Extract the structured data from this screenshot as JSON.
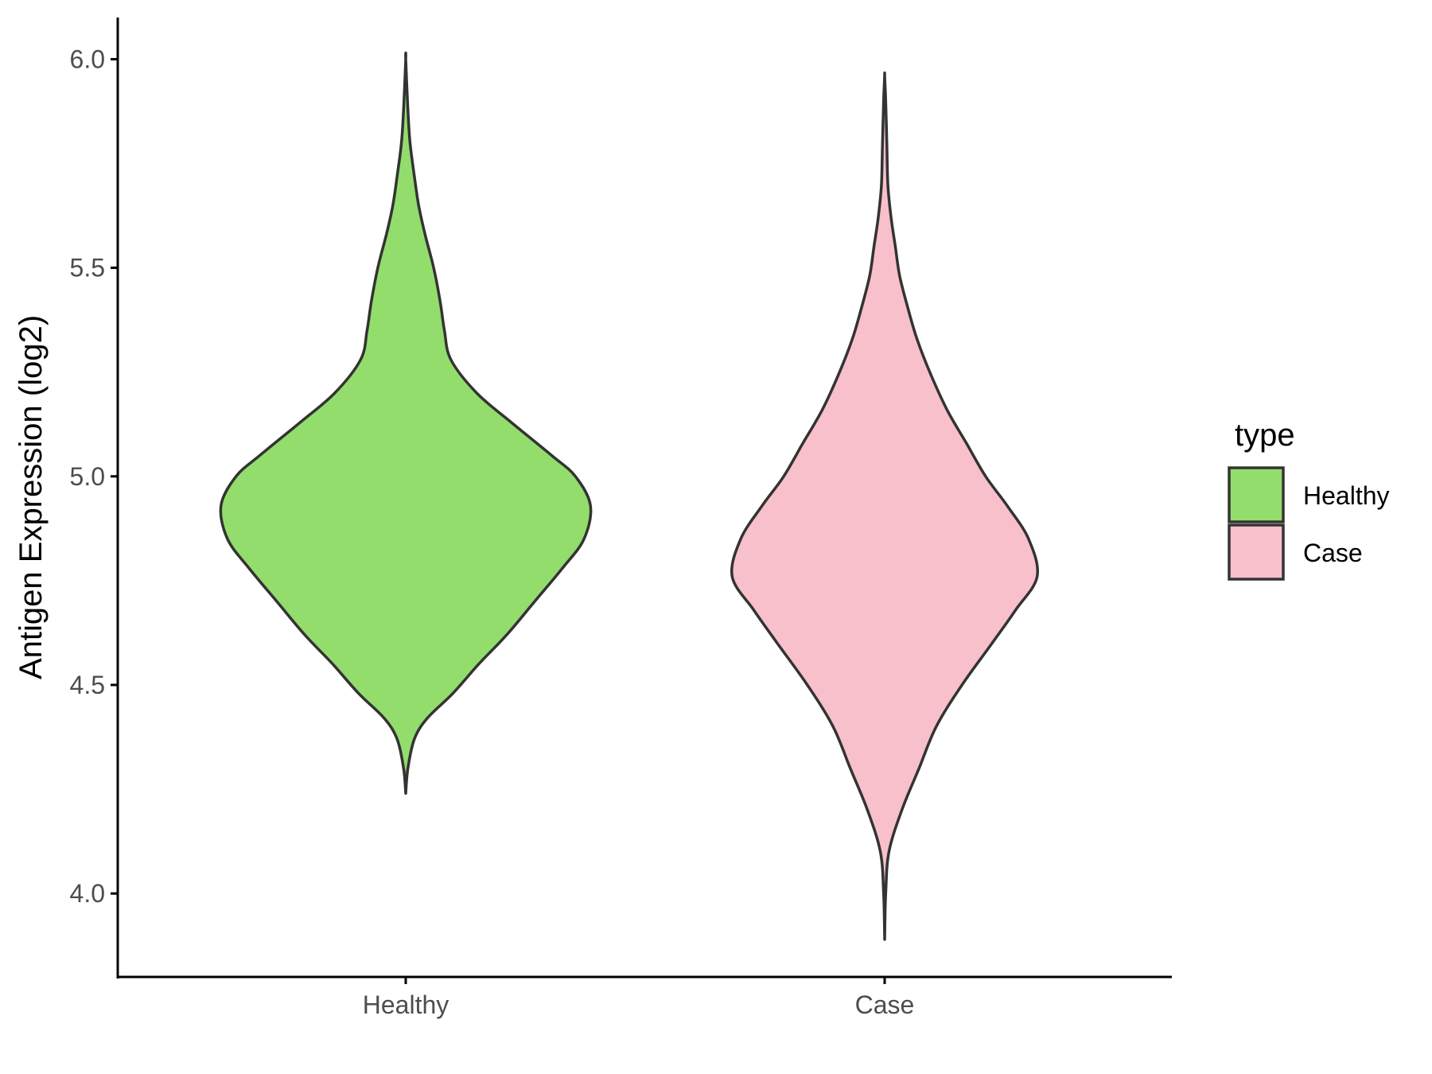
{
  "chart_data": {
    "type": "violin",
    "title": "",
    "xlabel": "",
    "ylabel": "Antigen Expression (log2)",
    "ylim": [
      3.8,
      6.1
    ],
    "yticks": [
      "4.0",
      "4.5",
      "5.0",
      "5.5",
      "6.0"
    ],
    "ytick_values": [
      4.0,
      4.5,
      5.0,
      5.5,
      6.0
    ],
    "categories": [
      "Healthy",
      "Case"
    ],
    "grid": false,
    "legend": {
      "title": "type",
      "placement": "right",
      "entries": [
        "Healthy",
        "Case"
      ]
    },
    "series": [
      {
        "name": "Healthy",
        "color": "#93DD6C",
        "min": 4.24,
        "max": 6.0,
        "density_profile": [
          [
            4.24,
            0.0
          ],
          [
            4.3,
            0.01
          ],
          [
            4.37,
            0.04
          ],
          [
            4.42,
            0.1
          ],
          [
            4.48,
            0.22
          ],
          [
            4.55,
            0.34
          ],
          [
            4.62,
            0.47
          ],
          [
            4.7,
            0.6
          ],
          [
            4.78,
            0.73
          ],
          [
            4.85,
            0.83
          ],
          [
            4.93,
            0.86
          ],
          [
            5.0,
            0.79
          ],
          [
            5.05,
            0.68
          ],
          [
            5.13,
            0.49
          ],
          [
            5.2,
            0.33
          ],
          [
            5.28,
            0.21
          ],
          [
            5.35,
            0.18
          ],
          [
            5.42,
            0.16
          ],
          [
            5.5,
            0.13
          ],
          [
            5.58,
            0.09
          ],
          [
            5.65,
            0.06
          ],
          [
            5.72,
            0.04
          ],
          [
            5.8,
            0.02
          ],
          [
            5.88,
            0.01
          ],
          [
            6.0,
            0.0
          ]
        ]
      },
      {
        "name": "Case",
        "color": "#F8C0CB",
        "min": 3.89,
        "max": 5.96,
        "density_profile": [
          [
            3.89,
            0.0
          ],
          [
            4.0,
            0.005
          ],
          [
            4.1,
            0.02
          ],
          [
            4.2,
            0.08
          ],
          [
            4.3,
            0.16
          ],
          [
            4.4,
            0.24
          ],
          [
            4.5,
            0.36
          ],
          [
            4.6,
            0.5
          ],
          [
            4.68,
            0.61
          ],
          [
            4.76,
            0.71
          ],
          [
            4.85,
            0.67
          ],
          [
            4.93,
            0.57
          ],
          [
            5.0,
            0.47
          ],
          [
            5.08,
            0.38
          ],
          [
            5.16,
            0.29
          ],
          [
            5.25,
            0.21
          ],
          [
            5.33,
            0.15
          ],
          [
            5.4,
            0.11
          ],
          [
            5.48,
            0.07
          ],
          [
            5.55,
            0.05
          ],
          [
            5.62,
            0.03
          ],
          [
            5.7,
            0.015
          ],
          [
            5.8,
            0.01
          ],
          [
            5.9,
            0.005
          ],
          [
            5.96,
            0.0
          ]
        ]
      }
    ],
    "outline_color": "#333333",
    "axis_color": "#000000"
  }
}
